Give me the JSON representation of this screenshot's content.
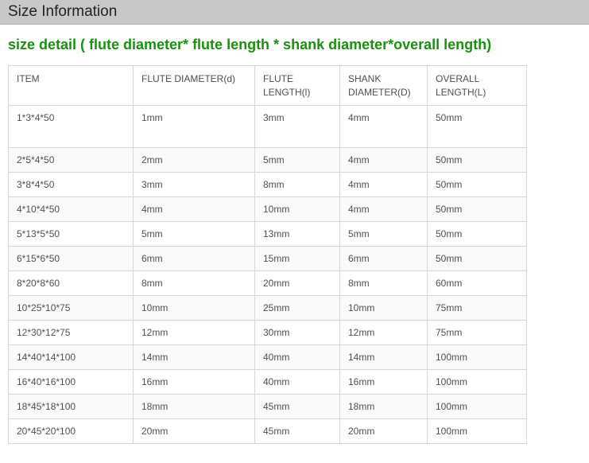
{
  "header": {
    "title": "Size Information"
  },
  "subtitle": "size detail ( flute diameter* flute length * shank diameter*overall length)",
  "table": {
    "columns": [
      "ITEM",
      "FLUTE DIAMETER(d)",
      "FLUTE LENGTH(l)",
      "SHANK DIAMETER(D)",
      "OVERALL LENGTH(L)"
    ],
    "rows": [
      [
        "1*3*4*50",
        "1mm",
        "3mm",
        "4mm",
        "50mm"
      ],
      [
        "2*5*4*50",
        "2mm",
        "5mm",
        "4mm",
        "50mm"
      ],
      [
        "3*8*4*50",
        "3mm",
        "8mm",
        "4mm",
        "50mm"
      ],
      [
        "4*10*4*50",
        "4mm",
        "10mm",
        "4mm",
        "50mm"
      ],
      [
        "5*13*5*50",
        "5mm",
        "13mm",
        "5mm",
        "50mm"
      ],
      [
        "6*15*6*50",
        "6mm",
        "15mm",
        "6mm",
        "50mm"
      ],
      [
        "8*20*8*60",
        "8mm",
        "20mm",
        "8mm",
        "60mm"
      ],
      [
        "10*25*10*75",
        "10mm",
        "25mm",
        "10mm",
        "75mm"
      ],
      [
        "12*30*12*75",
        "12mm",
        "30mm",
        "12mm",
        "75mm"
      ],
      [
        "14*40*14*100",
        "14mm",
        "40mm",
        "14mm",
        "100mm"
      ],
      [
        "16*40*16*100",
        "16mm",
        "40mm",
        "16mm",
        "100mm"
      ],
      [
        "18*45*18*100",
        "18mm",
        "45mm",
        "18mm",
        "100mm"
      ],
      [
        "20*45*20*100",
        "20mm",
        "45mm",
        "20mm",
        "100mm"
      ]
    ]
  }
}
